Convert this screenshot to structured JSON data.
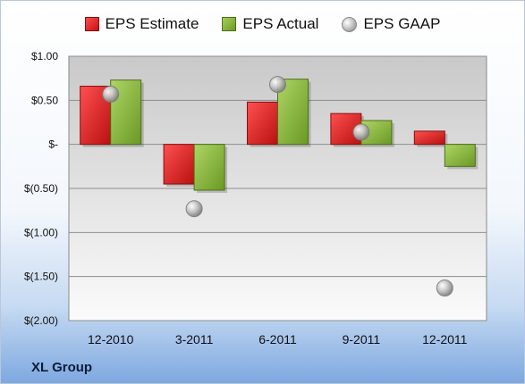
{
  "chart_data": {
    "type": "bar",
    "categories": [
      "12-2010",
      "3-2011",
      "6-2011",
      "9-2011",
      "12-2011"
    ],
    "series": [
      {
        "name": "EPS Estimate",
        "values": [
          0.66,
          -0.45,
          0.48,
          0.35,
          0.15
        ],
        "color": "#d42020"
      },
      {
        "name": "EPS Actual",
        "values": [
          0.73,
          -0.52,
          0.74,
          0.27,
          -0.25
        ],
        "color": "#8dbb45"
      },
      {
        "name": "EPS GAAP",
        "values": [
          0.57,
          -0.73,
          0.68,
          0.14,
          -1.63
        ],
        "color": "#a6a6a6",
        "marker": "circle"
      }
    ],
    "ylim": [
      -2.0,
      1.0
    ],
    "yticks": [
      1.0,
      0.5,
      0.0,
      -0.5,
      -1.0,
      -1.5,
      -2.0
    ],
    "ytick_labels": [
      "$1.00",
      "$0.50",
      "$-",
      "$(0.50)",
      "$(1.00)",
      "$(1.50)",
      "$(2.00)"
    ],
    "grid": true,
    "legend_position": "top"
  },
  "legend": {
    "estimate": "EPS Estimate",
    "actual": "EPS Actual",
    "gaap": "EPS GAAP"
  },
  "company": "XL Group"
}
